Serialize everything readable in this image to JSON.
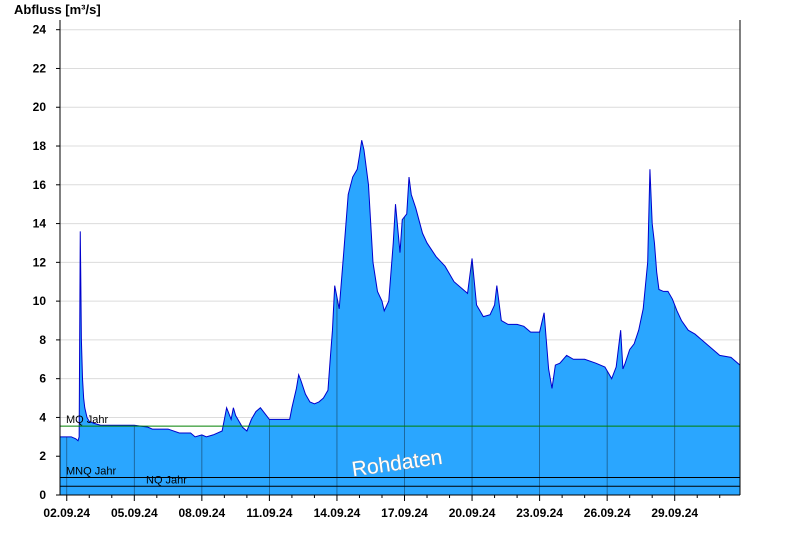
{
  "colors": {
    "fill": "#2aa6ff",
    "line": "#0000cc",
    "grid": "#dcdcdc",
    "mq_line": "#008000",
    "ref_line": "#000000",
    "day_line": "#1a5a8a"
  },
  "chart_data": {
    "type": "area",
    "ylabel": "Abfluss [m³/s]",
    "ylim": [
      0,
      24.5
    ],
    "yticks": [
      0,
      2,
      4,
      6,
      8,
      10,
      12,
      14,
      16,
      18,
      20,
      22,
      24
    ],
    "xlim": [
      1.7,
      31.9
    ],
    "xtick_labels": [
      "02.09.24",
      "05.09.24",
      "08.09.24",
      "11.09.24",
      "14.09.24",
      "17.09.24",
      "20.09.24",
      "23.09.24",
      "26.09.24",
      "29.09.24"
    ],
    "xtick_days": [
      2,
      5,
      8,
      11,
      14,
      17,
      20,
      23,
      26,
      29
    ],
    "grid": "horizontal",
    "watermark": "Rohdaten",
    "reference_lines": [
      {
        "label": "MQ Jahr",
        "value": 3.55
      },
      {
        "label": "MNQ Jahr",
        "value": 0.9
      },
      {
        "label": "NQ Jahr",
        "value": 0.45
      }
    ],
    "series": [
      {
        "x": [
          1.7,
          2.2,
          2.4,
          2.5,
          2.55,
          2.6,
          2.62,
          2.65,
          2.7,
          2.75,
          2.8,
          2.9,
          3.0,
          3.2,
          3.5,
          4.0,
          5.0,
          5.6,
          5.8,
          6.0,
          6.5,
          7.0,
          7.5,
          7.7,
          8.0,
          8.2,
          8.5,
          8.9,
          9.1,
          9.2,
          9.3,
          9.4,
          9.5,
          9.6,
          9.8,
          10.0,
          10.2,
          10.4,
          10.6,
          10.8,
          11.0,
          11.5,
          11.9,
          12.0,
          12.2,
          12.3,
          12.4,
          12.6,
          12.8,
          13.0,
          13.2,
          13.4,
          13.5,
          13.6,
          13.7,
          13.8,
          13.9,
          14.1,
          14.3,
          14.5,
          14.7,
          14.9,
          15.0,
          15.1,
          15.2,
          15.4,
          15.6,
          15.8,
          16.0,
          16.1,
          16.3,
          16.5,
          16.6,
          16.8,
          16.9,
          17.1,
          17.2,
          17.3,
          17.5,
          17.8,
          18.0,
          18.4,
          18.8,
          19.2,
          19.6,
          19.8,
          20.0,
          20.2,
          20.5,
          20.8,
          21.0,
          21.1,
          21.3,
          21.6,
          22.0,
          22.3,
          22.6,
          22.8,
          23.0,
          23.2,
          23.4,
          23.55,
          23.7,
          23.9,
          24.2,
          24.5,
          24.8,
          25.0,
          25.5,
          25.9,
          26.0,
          26.2,
          26.4,
          26.6,
          26.7,
          26.8,
          27.0,
          27.2,
          27.4,
          27.6,
          27.8,
          27.9,
          28.0,
          28.1,
          28.2,
          28.3,
          28.5,
          28.7,
          28.9,
          29.1,
          29.3,
          29.6,
          29.9,
          30.2,
          30.6,
          31.0,
          31.5,
          31.9
        ],
        "y": [
          3.0,
          3.0,
          2.9,
          2.8,
          3.0,
          13.6,
          11.5,
          8.0,
          6.0,
          5.0,
          4.5,
          4.0,
          3.8,
          3.7,
          3.6,
          3.6,
          3.6,
          3.5,
          3.4,
          3.4,
          3.4,
          3.2,
          3.2,
          3.0,
          3.1,
          3.0,
          3.1,
          3.3,
          4.5,
          4.2,
          3.9,
          4.5,
          4.1,
          3.9,
          3.5,
          3.3,
          3.9,
          4.3,
          4.5,
          4.2,
          3.9,
          3.9,
          3.9,
          4.5,
          5.5,
          6.2,
          5.9,
          5.2,
          4.8,
          4.7,
          4.8,
          5.0,
          5.2,
          5.4,
          7.0,
          8.5,
          10.8,
          9.6,
          12.5,
          15.5,
          16.4,
          16.8,
          17.5,
          18.3,
          17.8,
          16.0,
          12.0,
          10.5,
          10.0,
          9.5,
          10.0,
          13.0,
          15.0,
          12.5,
          14.2,
          14.5,
          16.4,
          15.5,
          14.8,
          13.5,
          13.0,
          12.3,
          11.8,
          11.0,
          10.6,
          10.4,
          12.2,
          9.8,
          9.2,
          9.3,
          9.8,
          10.8,
          9.0,
          8.8,
          8.8,
          8.7,
          8.4,
          8.4,
          8.4,
          9.4,
          6.5,
          5.5,
          6.7,
          6.8,
          7.2,
          7.0,
          7.0,
          7.0,
          6.8,
          6.6,
          6.4,
          6.0,
          6.6,
          8.5,
          6.5,
          6.8,
          7.5,
          7.8,
          8.5,
          9.6,
          12.0,
          16.8,
          14.0,
          13.0,
          11.5,
          10.6,
          10.5,
          10.5,
          10.1,
          9.5,
          9.0,
          8.5,
          8.3,
          8.0,
          7.6,
          7.2,
          7.1,
          6.7
        ]
      }
    ]
  }
}
